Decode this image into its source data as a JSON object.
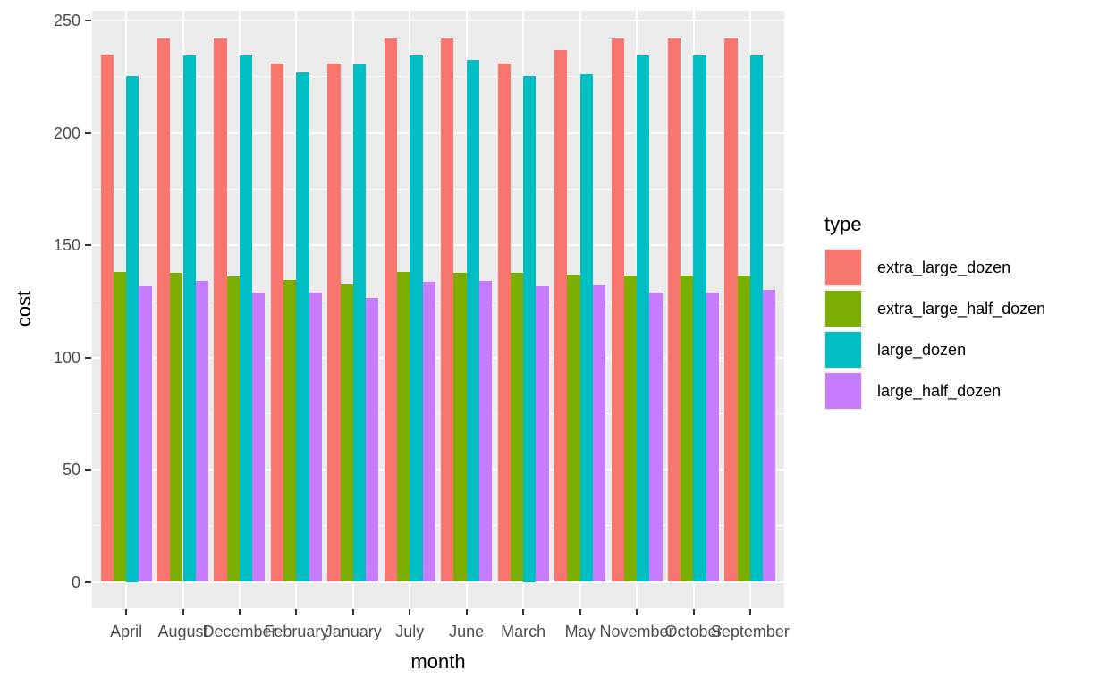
{
  "chart_data": {
    "type": "bar",
    "title": "",
    "xlabel": "month",
    "ylabel": "cost",
    "legend_title": "type",
    "legend_position": "right",
    "grid": true,
    "categories": [
      "April",
      "August",
      "December",
      "February",
      "January",
      "July",
      "June",
      "March",
      "May",
      "November",
      "October",
      "September"
    ],
    "series": [
      {
        "name": "extra_large_dozen",
        "color": "#F8766D",
        "values": [
          235,
          242,
          242,
          231,
          231,
          242,
          242,
          231,
          237,
          242,
          242,
          242
        ]
      },
      {
        "name": "extra_large_half_dozen",
        "color": "#7CAE00",
        "values": [
          138,
          137.5,
          136,
          134.5,
          132.5,
          138,
          137.5,
          137.5,
          137,
          136.5,
          136.5,
          136.5
        ]
      },
      {
        "name": "large_dozen",
        "color": "#00BFC4",
        "values": [
          225.5,
          234.5,
          234.5,
          227,
          230.5,
          234.5,
          232.5,
          225.5,
          226,
          234.5,
          234.5,
          234.5
        ]
      },
      {
        "name": "large_half_dozen",
        "color": "#C77CFF",
        "values": [
          131.5,
          134,
          129,
          129,
          126.5,
          133.5,
          134,
          131.5,
          132,
          129,
          129,
          130
        ]
      }
    ],
    "y_ticks": [
      0,
      50,
      100,
      150,
      200,
      250
    ],
    "y_minor_ticks": [
      25,
      75,
      125,
      175,
      225
    ],
    "ylim": [
      0,
      250
    ],
    "colors": {
      "panel_bg": "#EBEBEB",
      "grid": "#FFFFFF",
      "axis_text": "#4D4D4D",
      "axis_title": "#000000",
      "tick_mark": "#333333",
      "legend_key_bg": "#F2F2F2"
    }
  }
}
